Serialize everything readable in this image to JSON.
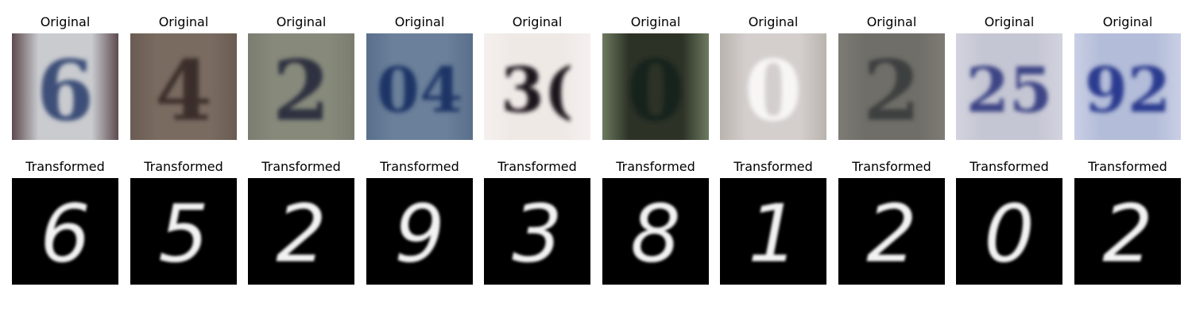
{
  "figure": {
    "rows": [
      {
        "key": "original",
        "title": "Original",
        "panels": [
          {
            "digit": "6",
            "bg": "#c9cbcf",
            "fg": "#3e4f78",
            "edge": "#5d4a4e"
          },
          {
            "digit": "4",
            "bg": "#7a6b61",
            "fg": "#3a2f2a",
            "edge": "#6a5c52"
          },
          {
            "digit": "2",
            "bg": "#878a7b",
            "fg": "#2d3140",
            "edge": "#7b7d70"
          },
          {
            "digit": "04",
            "bg": "#6b809a",
            "fg": "#1f3566",
            "edge": "#5a6f8c"
          },
          {
            "digit": "3(",
            "bg": "#efe9e6",
            "fg": "#1d171a",
            "edge": "#f5f0ee"
          },
          {
            "digit": "0",
            "bg": "#2c3226",
            "fg": "#14231c",
            "edge": "#6e7a60"
          },
          {
            "digit": "0",
            "bg": "#d4cfcd",
            "fg": "#f7f6f5",
            "edge": "#b9b3ae"
          },
          {
            "digit": "2",
            "bg": "#6f6e68",
            "fg": "#3e3f41",
            "edge": "#7d7b74"
          },
          {
            "digit": "25",
            "bg": "#c5c6d3",
            "fg": "#3d4585",
            "edge": "#d2d3df"
          },
          {
            "digit": "92",
            "bg": "#b3bcd8",
            "fg": "#2c3b8f",
            "edge": "#c9cfe4"
          }
        ]
      },
      {
        "key": "transformed",
        "title": "Transformed",
        "panels": [
          {
            "digit": "6"
          },
          {
            "digit": "5"
          },
          {
            "digit": "2"
          },
          {
            "digit": "9"
          },
          {
            "digit": "3"
          },
          {
            "digit": "8"
          },
          {
            "digit": "1"
          },
          {
            "digit": "2"
          },
          {
            "digit": "0"
          },
          {
            "digit": "2"
          }
        ]
      }
    ]
  }
}
